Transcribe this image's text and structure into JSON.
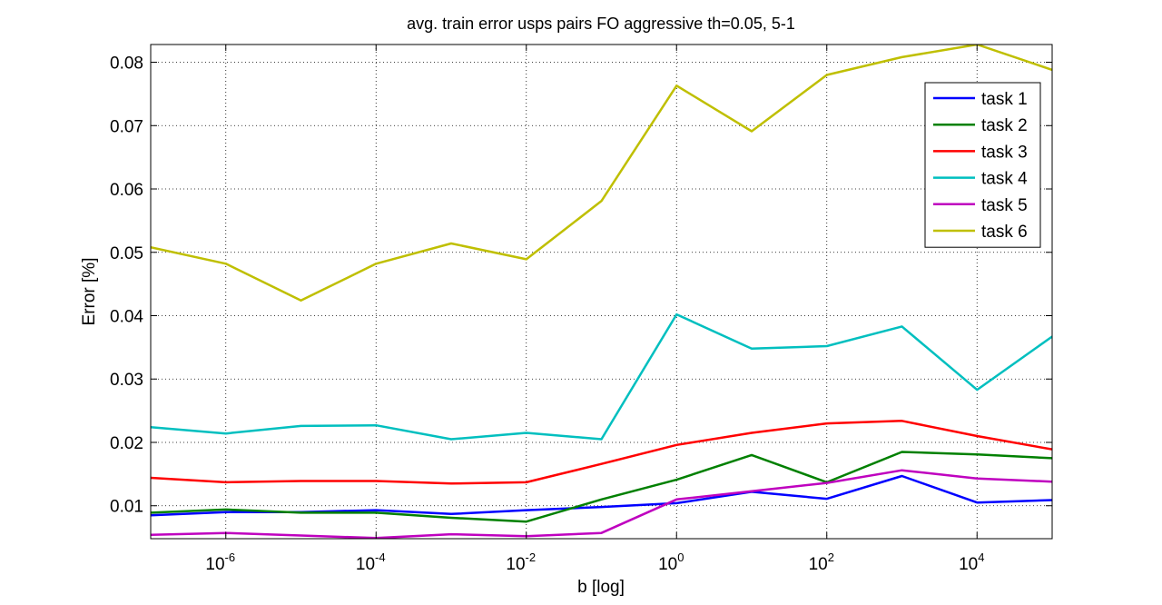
{
  "chart_data": {
    "type": "line",
    "title": "avg. train error usps pairs FO aggressive th=0.05, 5-1",
    "xlabel": "b [log]",
    "ylabel": "Error [%]",
    "x_scale": "log",
    "x": [
      1e-07,
      1e-06,
      1e-05,
      0.0001,
      0.001,
      0.01,
      0.1,
      1.0,
      10.0,
      100.0,
      1000.0,
      10000.0,
      100000.0
    ],
    "xlim": [
      1e-07,
      100000.0
    ],
    "ylim": [
      0.0048,
      0.0828
    ],
    "x_ticks": [
      {
        "base": "10",
        "exp": "-6"
      },
      {
        "base": "10",
        "exp": "-4"
      },
      {
        "base": "10",
        "exp": "-2"
      },
      {
        "base": "10",
        "exp": "0"
      },
      {
        "base": "10",
        "exp": "2"
      },
      {
        "base": "10",
        "exp": "4"
      }
    ],
    "y_ticks": [
      "0.01",
      "0.02",
      "0.03",
      "0.04",
      "0.05",
      "0.06",
      "0.07",
      "0.08"
    ],
    "grid": true,
    "legend_position": "top-right",
    "series": [
      {
        "name": "task 1",
        "color": "#0000ff",
        "values": [
          0.0085,
          0.009,
          0.009,
          0.0093,
          0.0087,
          0.0093,
          0.0098,
          0.0104,
          0.0122,
          0.0111,
          0.0147,
          0.0105,
          0.0109
        ]
      },
      {
        "name": "task 2",
        "color": "#008000",
        "values": [
          0.0089,
          0.0094,
          0.0089,
          0.0089,
          0.0081,
          0.0075,
          0.011,
          0.0141,
          0.018,
          0.0137,
          0.0185,
          0.0181,
          0.0175
        ]
      },
      {
        "name": "task 3",
        "color": "#ff0000",
        "values": [
          0.0144,
          0.0137,
          0.0139,
          0.0139,
          0.0135,
          0.0137,
          0.0166,
          0.0196,
          0.0215,
          0.023,
          0.0234,
          0.021,
          0.0189
        ]
      },
      {
        "name": "task 4",
        "color": "#00bfbf",
        "values": [
          0.0224,
          0.0214,
          0.0226,
          0.0227,
          0.0205,
          0.0215,
          0.0205,
          0.0402,
          0.0348,
          0.0352,
          0.0383,
          0.0283,
          0.0367
        ]
      },
      {
        "name": "task 5",
        "color": "#bf00bf",
        "values": [
          0.0054,
          0.0057,
          0.0053,
          0.0049,
          0.0055,
          0.0052,
          0.0057,
          0.011,
          0.0123,
          0.0136,
          0.0156,
          0.0143,
          0.0138
        ]
      },
      {
        "name": "task 6",
        "color": "#bfbf00",
        "values": [
          0.0508,
          0.0482,
          0.0424,
          0.0482,
          0.0514,
          0.0489,
          0.0581,
          0.0763,
          0.0691,
          0.078,
          0.0808,
          0.0828,
          0.0788
        ]
      }
    ]
  }
}
